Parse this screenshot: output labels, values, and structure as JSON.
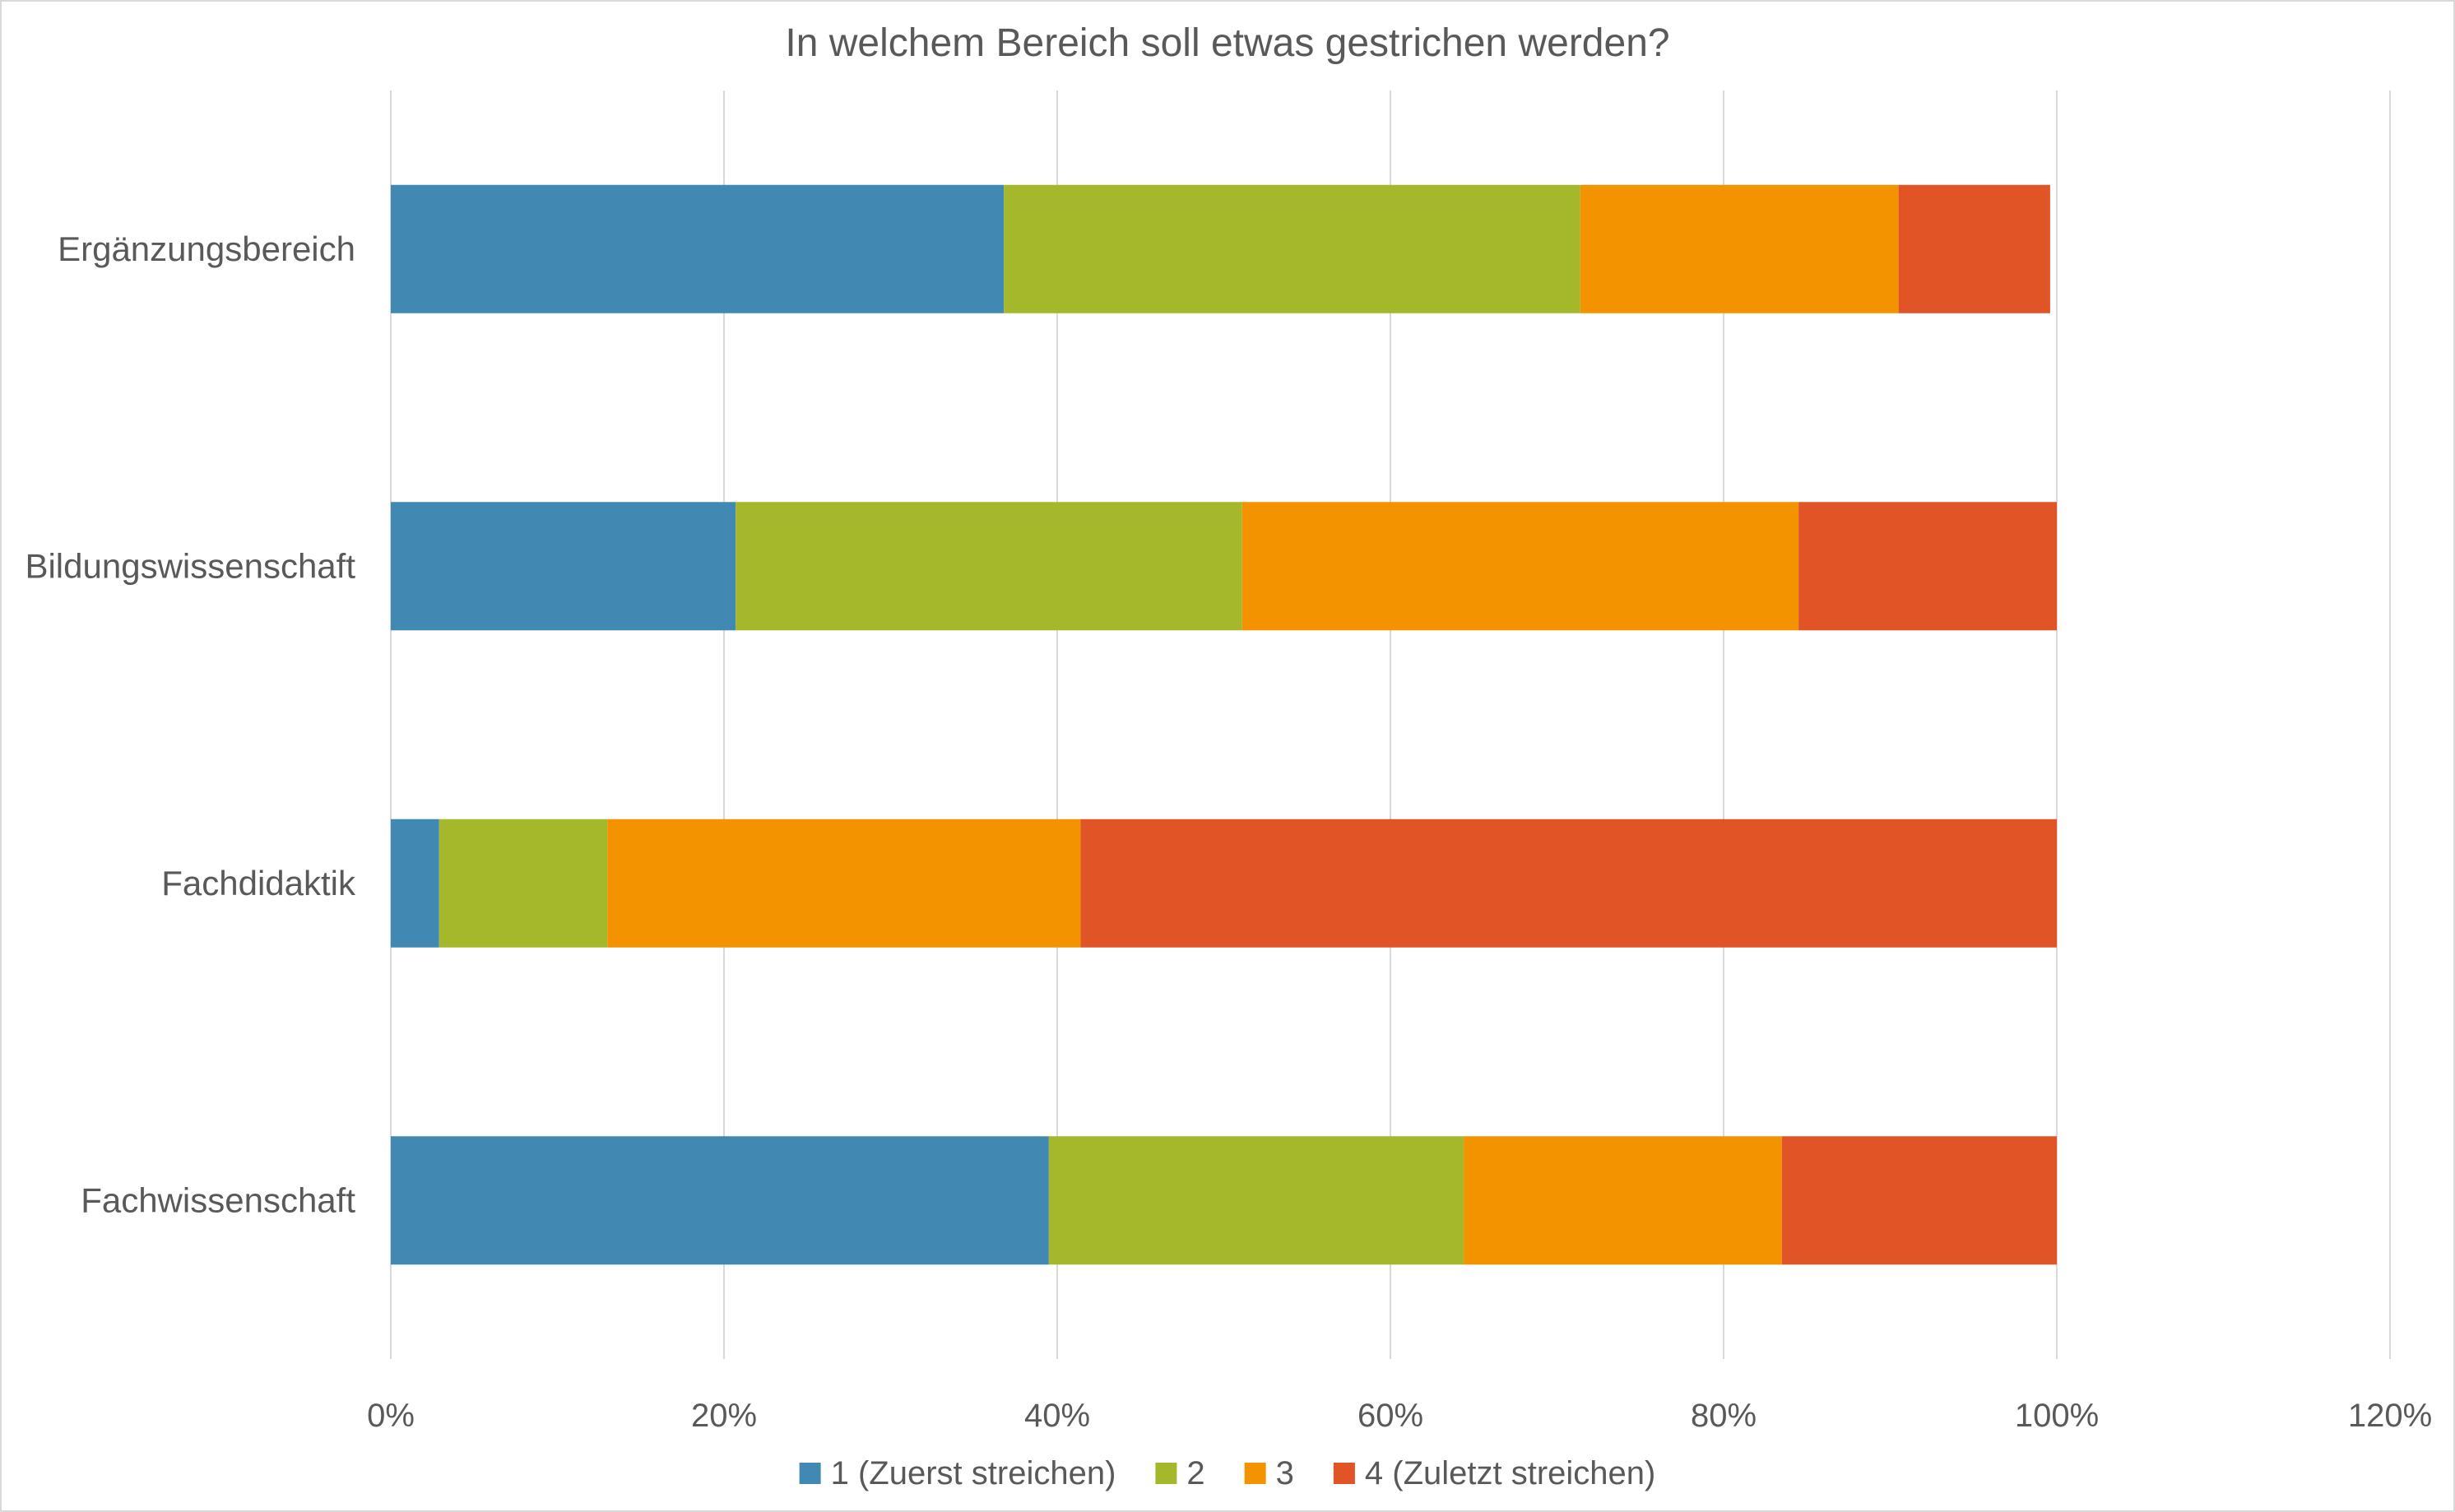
{
  "chart_data": {
    "type": "bar",
    "orientation": "horizontal",
    "stacked": true,
    "title": "In welchem Bereich soll etwas gestrichen werden?",
    "categories": [
      "Ergänzungsbereich",
      "Bildungswissenschaft",
      "Fachdidaktik",
      "Fachwissenschaft"
    ],
    "series": [
      {
        "name": "1 (Zuerst streichen)",
        "color": "#4189b2",
        "values": [
          36.8,
          20.7,
          2.9,
          39.5
        ]
      },
      {
        "name": "2",
        "color": "#a5b82b",
        "values": [
          34.6,
          30.4,
          10.1,
          24.9
        ]
      },
      {
        "name": "3",
        "color": "#f49300",
        "values": [
          19.1,
          33.4,
          28.4,
          19.1
        ]
      },
      {
        "name": "4 (Zuletzt streichen)",
        "color": "#e05426",
        "values": [
          9.1,
          15.5,
          58.6,
          16.5
        ]
      }
    ],
    "x_ticks": [
      "0%",
      "20%",
      "40%",
      "60%",
      "80%",
      "100%",
      "120%"
    ],
    "xlim": [
      0,
      120
    ],
    "grid": true,
    "legend_position": "bottom"
  }
}
